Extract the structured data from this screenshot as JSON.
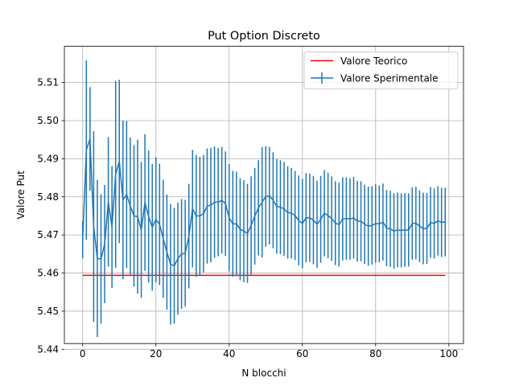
{
  "chart_data": {
    "type": "line",
    "title": "Put Option Discreto",
    "xlabel": "N blocchi",
    "ylabel": "Valore Put",
    "xlim": [
      -5,
      104
    ],
    "ylim": [
      5.4415,
      5.5195
    ],
    "grid": true,
    "legend_position": "top-right",
    "x_ticks": [
      0,
      20,
      40,
      60,
      80,
      100
    ],
    "y_ticks": [
      5.44,
      5.45,
      5.46,
      5.47,
      5.48,
      5.49,
      5.5,
      5.51
    ],
    "x_tick_labels": [
      "0",
      "20",
      "40",
      "60",
      "80",
      "100"
    ],
    "y_tick_labels": [
      "5.44",
      "5.45",
      "5.46",
      "5.47",
      "5.48",
      "5.49",
      "5.50",
      "5.51"
    ],
    "series": [
      {
        "name": "Valore Teorico",
        "color": "#ff0000",
        "kind": "line",
        "x": [
          0,
          99
        ],
        "y": [
          5.4594,
          5.4594
        ]
      },
      {
        "name": "Valore Sperimentale",
        "color": "#1f77b4",
        "kind": "errorbar",
        "x": [
          0,
          1,
          2,
          3,
          4,
          5,
          6,
          7,
          8,
          9,
          10,
          11,
          12,
          13,
          14,
          15,
          16,
          17,
          18,
          19,
          20,
          21,
          22,
          23,
          24,
          25,
          26,
          27,
          28,
          29,
          30,
          31,
          32,
          33,
          34,
          35,
          36,
          37,
          38,
          39,
          40,
          41,
          42,
          43,
          44,
          45,
          46,
          47,
          48,
          49,
          50,
          51,
          52,
          53,
          54,
          55,
          56,
          57,
          58,
          59,
          60,
          61,
          62,
          63,
          64,
          65,
          66,
          67,
          68,
          69,
          70,
          71,
          72,
          73,
          74,
          75,
          76,
          77,
          78,
          79,
          80,
          81,
          82,
          83,
          84,
          85,
          86,
          87,
          88,
          89,
          90,
          91,
          92,
          93,
          94,
          95,
          96,
          97,
          98,
          99
        ],
        "y": [
          5.4688,
          5.4923,
          5.4952,
          5.4722,
          5.4638,
          5.4637,
          5.4676,
          5.4787,
          5.4721,
          5.4859,
          5.4893,
          5.4792,
          5.4806,
          5.4776,
          5.475,
          5.4748,
          5.4713,
          5.4785,
          5.4748,
          5.472,
          5.474,
          5.4728,
          5.469,
          5.4655,
          5.4623,
          5.4619,
          5.4638,
          5.465,
          5.4652,
          5.4697,
          5.4769,
          5.475,
          5.475,
          5.4756,
          5.4776,
          5.4778,
          5.4786,
          5.4786,
          5.4791,
          5.4782,
          5.4745,
          5.4729,
          5.4729,
          5.4715,
          5.471,
          5.4704,
          5.4725,
          5.4749,
          5.4771,
          5.4786,
          5.4801,
          5.4803,
          5.4791,
          5.4775,
          5.4773,
          5.4768,
          5.4759,
          5.4757,
          5.4751,
          5.4738,
          5.473,
          5.4745,
          5.4745,
          5.4739,
          5.4728,
          5.4741,
          5.4757,
          5.4751,
          5.4743,
          5.4731,
          5.4727,
          5.4742,
          5.4743,
          5.4742,
          5.4745,
          5.4736,
          5.4736,
          5.4728,
          5.4723,
          5.4725,
          5.473,
          5.4729,
          5.4734,
          5.4718,
          5.4716,
          5.471,
          5.4713,
          5.4712,
          5.4713,
          5.4713,
          5.473,
          5.4731,
          5.4723,
          5.4717,
          5.4717,
          5.4733,
          5.473,
          5.4737,
          5.4733,
          5.4734
        ],
        "err": [
          0.0049,
          0.0235,
          0.0136,
          0.025,
          0.0206,
          0.017,
          0.0155,
          0.017,
          0.016,
          0.0245,
          0.0214,
          0.0208,
          0.0193,
          0.018,
          0.0186,
          0.0202,
          0.0178,
          0.0179,
          0.0173,
          0.0166,
          0.0164,
          0.0159,
          0.0155,
          0.0151,
          0.0158,
          0.0152,
          0.0147,
          0.0144,
          0.014,
          0.0137,
          0.0154,
          0.016,
          0.0155,
          0.0154,
          0.0151,
          0.015,
          0.0146,
          0.0142,
          0.014,
          0.0137,
          0.0141,
          0.0139,
          0.0137,
          0.0134,
          0.0134,
          0.013,
          0.0129,
          0.0127,
          0.0125,
          0.0145,
          0.0132,
          0.0128,
          0.0126,
          0.0124,
          0.0123,
          0.0123,
          0.0121,
          0.0119,
          0.0117,
          0.0118,
          0.0117,
          0.0117,
          0.0116,
          0.0116,
          0.0114,
          0.0114,
          0.0113,
          0.0112,
          0.0111,
          0.011,
          0.011,
          0.0109,
          0.0108,
          0.0107,
          0.0107,
          0.0106,
          0.0105,
          0.0104,
          0.0104,
          0.0103,
          0.0103,
          0.0101,
          0.0101,
          0.01,
          0.01,
          0.0099,
          0.0098,
          0.0097,
          0.0097,
          0.0096,
          0.0095,
          0.0095,
          0.0094,
          0.0094,
          0.0093,
          0.0093,
          0.0092,
          0.0091,
          0.0091,
          0.009
        ]
      }
    ]
  }
}
